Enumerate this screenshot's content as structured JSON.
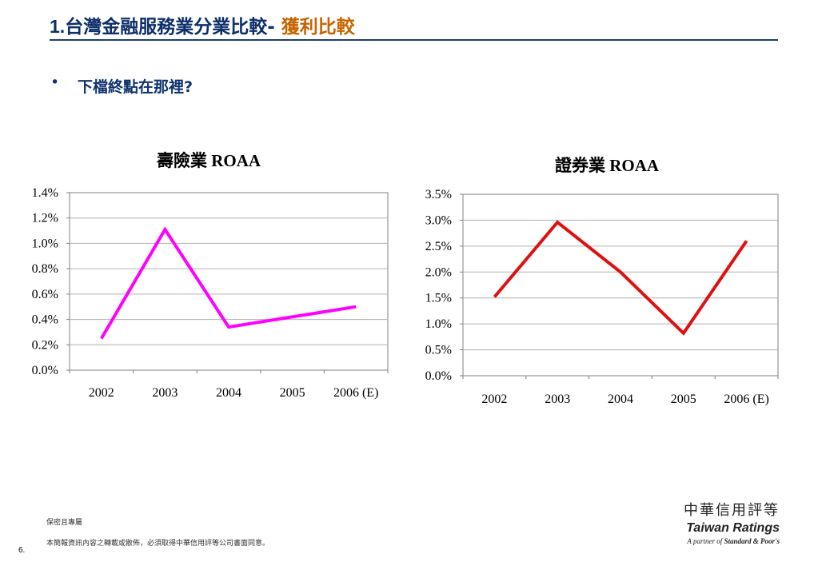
{
  "header": {
    "title_num": "1.",
    "title_main": "台灣金融服務業分業比較-",
    "title_accent": " 獲利比較"
  },
  "bullet": {
    "symbol": "•",
    "text": "下檔終點在那裡?"
  },
  "colors": {
    "title": "#0f2f6a",
    "accent": "#c86400",
    "life_line": "#ff00ff",
    "sec_line": "#e01010"
  },
  "chart_data": [
    {
      "type": "line",
      "title": "壽險業 ROAA",
      "categories": [
        "2002",
        "2003",
        "2004",
        "2005",
        "2006 (E)"
      ],
      "series": [
        {
          "values": [
            0.25,
            1.11,
            0.34,
            0.42,
            0.5
          ]
        }
      ],
      "ylim": [
        0,
        1.4
      ],
      "ytick_step": 0.2,
      "ytick_labels": [
        "0.0%",
        "0.2%",
        "0.4%",
        "0.6%",
        "0.8%",
        "1.0%",
        "1.2%",
        "1.4%"
      ],
      "grid": true,
      "color": "#ff00ff"
    },
    {
      "type": "line",
      "title": "證券業 ROAA",
      "categories": [
        "2002",
        "2003",
        "2004",
        "2005",
        "2006 (E)"
      ],
      "series": [
        {
          "values": [
            1.52,
            2.96,
            2.0,
            0.82,
            2.6
          ]
        }
      ],
      "ylim": [
        0,
        3.5
      ],
      "ytick_step": 0.5,
      "ytick_labels": [
        "0.0%",
        "0.5%",
        "1.0%",
        "1.5%",
        "2.0%",
        "2.5%",
        "3.0%",
        "3.5%"
      ],
      "grid": true,
      "color": "#e01010"
    }
  ],
  "footer": {
    "confidential": "保密且專屬",
    "disclaimer": "本簡報資訊內容之轉載或散佈，必須取得中華信用評等公司書面同意。",
    "page_number": "6."
  },
  "logo": {
    "chinese": "中華信用評等",
    "name": "Taiwan Ratings",
    "partner_prefix": "A partner of ",
    "partner_name": "Standard & Poor's"
  }
}
